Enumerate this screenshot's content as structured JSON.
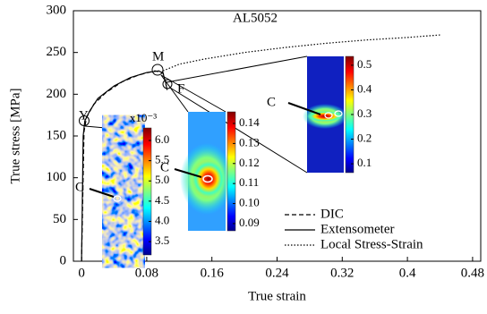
{
  "chart_data": {
    "type": "line",
    "title": "AL5052",
    "x_label": "True strain",
    "y_label": "True stress [MPa]",
    "xlim": [
      -0.01,
      0.49
    ],
    "ylim": [
      0,
      300
    ],
    "xticks": [
      0,
      0.08,
      0.16,
      0.24,
      0.32,
      {
        "value": 0.4,
        "label": "0.4"
      },
      0.48
    ],
    "yticks": [
      0,
      50,
      100,
      150,
      200,
      250,
      300
    ],
    "series": [
      {
        "name": "DIC",
        "style": "dashed",
        "color": "#000000",
        "x": [
          0,
          0.003,
          0.006,
          0.015,
          0.03,
          0.05,
          0.07,
          0.09,
          0.1,
          0.104
        ],
        "values": [
          0,
          155,
          172,
          188,
          202,
          215,
          223,
          228,
          226,
          210
        ]
      },
      {
        "name": "Extensometer",
        "style": "solid",
        "color": "#000000",
        "x": [
          0,
          0.002,
          0.004,
          0.01,
          0.02,
          0.04,
          0.06,
          0.08,
          0.095,
          0.1,
          0.103,
          0.105
        ],
        "values": [
          0,
          150,
          168,
          180,
          195,
          210,
          220,
          226,
          228,
          225,
          215,
          205
        ]
      },
      {
        "name": "Local Stress-Strain",
        "style": "dotted",
        "color": "#000000",
        "x": [
          0.1,
          0.12,
          0.15,
          0.2,
          0.25,
          0.3,
          0.35,
          0.4,
          0.44
        ],
        "values": [
          228,
          236,
          242,
          250,
          256,
          261,
          265,
          268,
          271
        ]
      }
    ],
    "point_labels": [
      "Y",
      "M",
      "F"
    ],
    "insets": [
      {
        "label": "C",
        "colorbar_title": "x10⁻³",
        "clim": [
          3.17,
          6.31
        ],
        "ticks": [
          {
            "value": 6.0,
            "label": "6.0"
          },
          5.5,
          {
            "value": 5.0,
            "label": "5.0"
          },
          4.5,
          {
            "value": 4.0,
            "label": "4.0"
          },
          3.5
        ]
      },
      {
        "label": "C",
        "clim": [
          0.0864,
          0.1458
        ],
        "ticks": [
          0.14,
          0.13,
          0.12,
          0.11,
          {
            "value": 0.1,
            "label": "0.10"
          },
          0.09
        ]
      },
      {
        "label": "C",
        "clim": [
          0.064,
          0.536
        ],
        "ticks": [
          0.5,
          0.4,
          0.3,
          0.2,
          0.1
        ]
      }
    ]
  }
}
